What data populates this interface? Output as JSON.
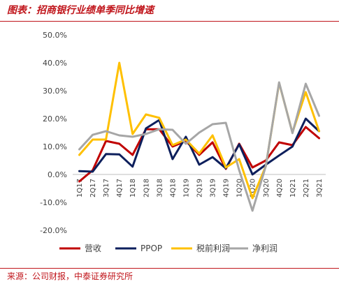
{
  "header": {
    "title": "图表：招商银行业绩单季同比增速"
  },
  "footer": {
    "source": "来源：公司财报，中泰证券研究所"
  },
  "chart_data": {
    "type": "line",
    "title": "",
    "xlabel": "",
    "ylabel": "",
    "categories": [
      "1Q17",
      "2Q17",
      "3Q17",
      "4Q17",
      "1Q18",
      "2Q18",
      "3Q18",
      "4Q18",
      "1Q19",
      "2Q19",
      "3Q19",
      "4Q19",
      "1Q20",
      "2Q20",
      "3Q20",
      "4Q20",
      "1Q21",
      "2Q21",
      "3Q21"
    ],
    "ylim": [
      -20,
      50
    ],
    "yticks": [
      -20,
      -10,
      0,
      10,
      20,
      30,
      40,
      50
    ],
    "ytick_labels": [
      "-20.0%",
      "-10.0%",
      "0.0%",
      "10.0%",
      "20.0%",
      "30.0%",
      "40.0%",
      "50.0%"
    ],
    "grid": false,
    "legend_position": "bottom",
    "series": [
      {
        "name": "营收",
        "color": "#c00000",
        "values": [
          -2.5,
          1.5,
          12.0,
          11.0,
          7.0,
          16.2,
          16.2,
          10.0,
          12.0,
          7.0,
          11.5,
          2.0,
          11.0,
          2.5,
          5.0,
          11.5,
          10.5,
          17.0,
          13.0
        ]
      },
      {
        "name": "PPOP",
        "color": "#0d1f5c",
        "values": [
          1.2,
          1.0,
          7.3,
          7.2,
          2.8,
          16.5,
          19.5,
          5.5,
          13.5,
          3.5,
          6.2,
          2.2,
          10.8,
          0.0,
          3.5,
          6.8,
          10.0,
          20.0,
          15.5
        ]
      },
      {
        "name": "税前利润",
        "color": "#ffc000",
        "values": [
          7.0,
          12.5,
          12.5,
          40.0,
          14.5,
          21.5,
          20.3,
          10.5,
          12.5,
          7.5,
          14.0,
          2.5,
          5.5,
          -8.5,
          3.0,
          32.8,
          15.0,
          29.5,
          15.5
        ]
      },
      {
        "name": "净利润",
        "color": "#a6a6a6",
        "values": [
          9.0,
          14.2,
          15.5,
          14.0,
          13.5,
          14.5,
          16.2,
          16.0,
          11.0,
          15.0,
          18.0,
          18.5,
          1.5,
          -13.0,
          3.0,
          33.0,
          14.8,
          32.5,
          21.0
        ]
      }
    ]
  }
}
